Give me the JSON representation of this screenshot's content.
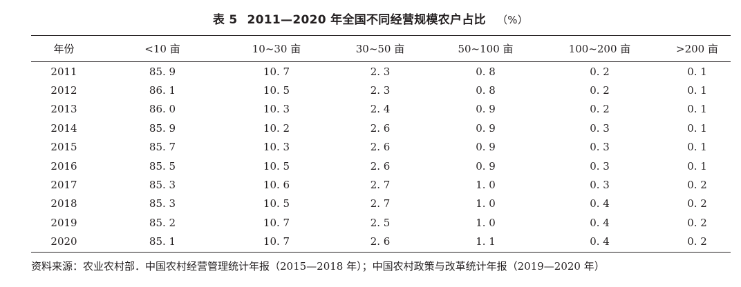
{
  "table": {
    "label": "表 5",
    "title": "2011—2020 年全国不同经营规模农户占比",
    "unit": "（%）",
    "columns": [
      "年份",
      "<10 亩",
      "10~30 亩",
      "30~50 亩",
      "50~100 亩",
      "100~200 亩",
      ">200 亩"
    ],
    "rows": [
      [
        "2011",
        "85. 9",
        "10. 7",
        "2. 3",
        "0. 8",
        "0. 2",
        "0. 1"
      ],
      [
        "2012",
        "86. 1",
        "10. 5",
        "2. 3",
        "0. 8",
        "0. 2",
        "0. 1"
      ],
      [
        "2013",
        "86. 0",
        "10. 3",
        "2. 4",
        "0. 9",
        "0. 2",
        "0. 1"
      ],
      [
        "2014",
        "85. 9",
        "10. 2",
        "2. 6",
        "0. 9",
        "0. 3",
        "0. 1"
      ],
      [
        "2015",
        "85. 7",
        "10. 3",
        "2. 6",
        "0. 9",
        "0. 3",
        "0. 1"
      ],
      [
        "2016",
        "85. 5",
        "10. 5",
        "2. 6",
        "0. 9",
        "0. 3",
        "0. 1"
      ],
      [
        "2017",
        "85. 3",
        "10. 6",
        "2. 7",
        "1. 0",
        "0. 3",
        "0. 2"
      ],
      [
        "2018",
        "85. 3",
        "10. 5",
        "2. 7",
        "1. 0",
        "0. 4",
        "0. 2"
      ],
      [
        "2019",
        "85. 2",
        "10. 7",
        "2. 5",
        "1. 0",
        "0. 4",
        "0. 2"
      ],
      [
        "2020",
        "85. 1",
        "10. 7",
        "2. 6",
        "1. 1",
        "0. 4",
        "0. 2"
      ]
    ],
    "source": "资料来源：农业农村部．中国农村经营管理统计年报（2015—2018 年）；中国农村政策与改革统计年报（2019—2020 年）"
  },
  "colors": {
    "text": "#231f20",
    "rules": "#231f20",
    "background": "#ffffff"
  }
}
